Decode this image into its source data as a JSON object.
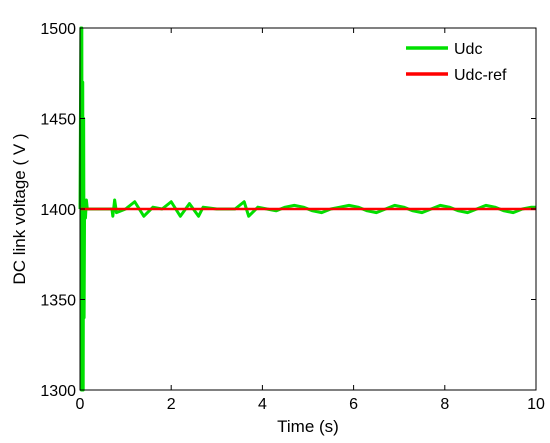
{
  "chart_data": {
    "type": "line",
    "xlabel": "Time (s)",
    "ylabel": "DC link voltage ( V )",
    "xlim": [
      0,
      10
    ],
    "ylim": [
      1300,
      1500
    ],
    "xticks": [
      0,
      2,
      4,
      6,
      8,
      10
    ],
    "yticks": [
      1300,
      1350,
      1400,
      1450,
      1500
    ],
    "grid": false,
    "legend_position": "top-right",
    "series": [
      {
        "name": "Udc",
        "color": "#00e000",
        "x": [
          0,
          0.02,
          0.03,
          0.04,
          0.05,
          0.06,
          0.07,
          0.08,
          0.09,
          0.1,
          0.12,
          0.14,
          0.16,
          0.2,
          0.3,
          0.5,
          0.7,
          0.72,
          0.76,
          0.8,
          1.0,
          1.2,
          1.4,
          1.6,
          1.8,
          2.0,
          2.2,
          2.4,
          2.6,
          2.7,
          3.0,
          3.4,
          3.6,
          3.7,
          3.9,
          4.1,
          4.3,
          4.5,
          4.7,
          4.9,
          5.1,
          5.3,
          5.5,
          5.7,
          5.9,
          6.1,
          6.3,
          6.5,
          6.7,
          6.9,
          7.1,
          7.3,
          7.5,
          7.7,
          7.9,
          8.1,
          8.3,
          8.5,
          8.7,
          8.9,
          9.1,
          9.3,
          9.5,
          9.7,
          9.9,
          10.0
        ],
        "y": [
          1400,
          1500,
          1300,
          1500,
          1300,
          1470,
          1300,
          1450,
          1340,
          1400,
          1395,
          1405,
          1400,
          1400,
          1400,
          1400,
          1400,
          1396,
          1405,
          1398,
          1400,
          1404,
          1396,
          1401,
          1400,
          1404,
          1396,
          1403,
          1396,
          1401,
          1400,
          1400,
          1404,
          1396,
          1401,
          1400,
          1399,
          1401,
          1402,
          1401,
          1399,
          1398,
          1400,
          1401,
          1402,
          1401,
          1399,
          1398,
          1400,
          1402,
          1401,
          1399,
          1398,
          1400,
          1402,
          1401,
          1399,
          1398,
          1400,
          1402,
          1401,
          1399,
          1398,
          1400,
          1401,
          1401
        ]
      },
      {
        "name": "Udc-ref",
        "color": "#ff0000",
        "x": [
          0.02,
          10
        ],
        "y": [
          1400,
          1400
        ]
      }
    ]
  }
}
